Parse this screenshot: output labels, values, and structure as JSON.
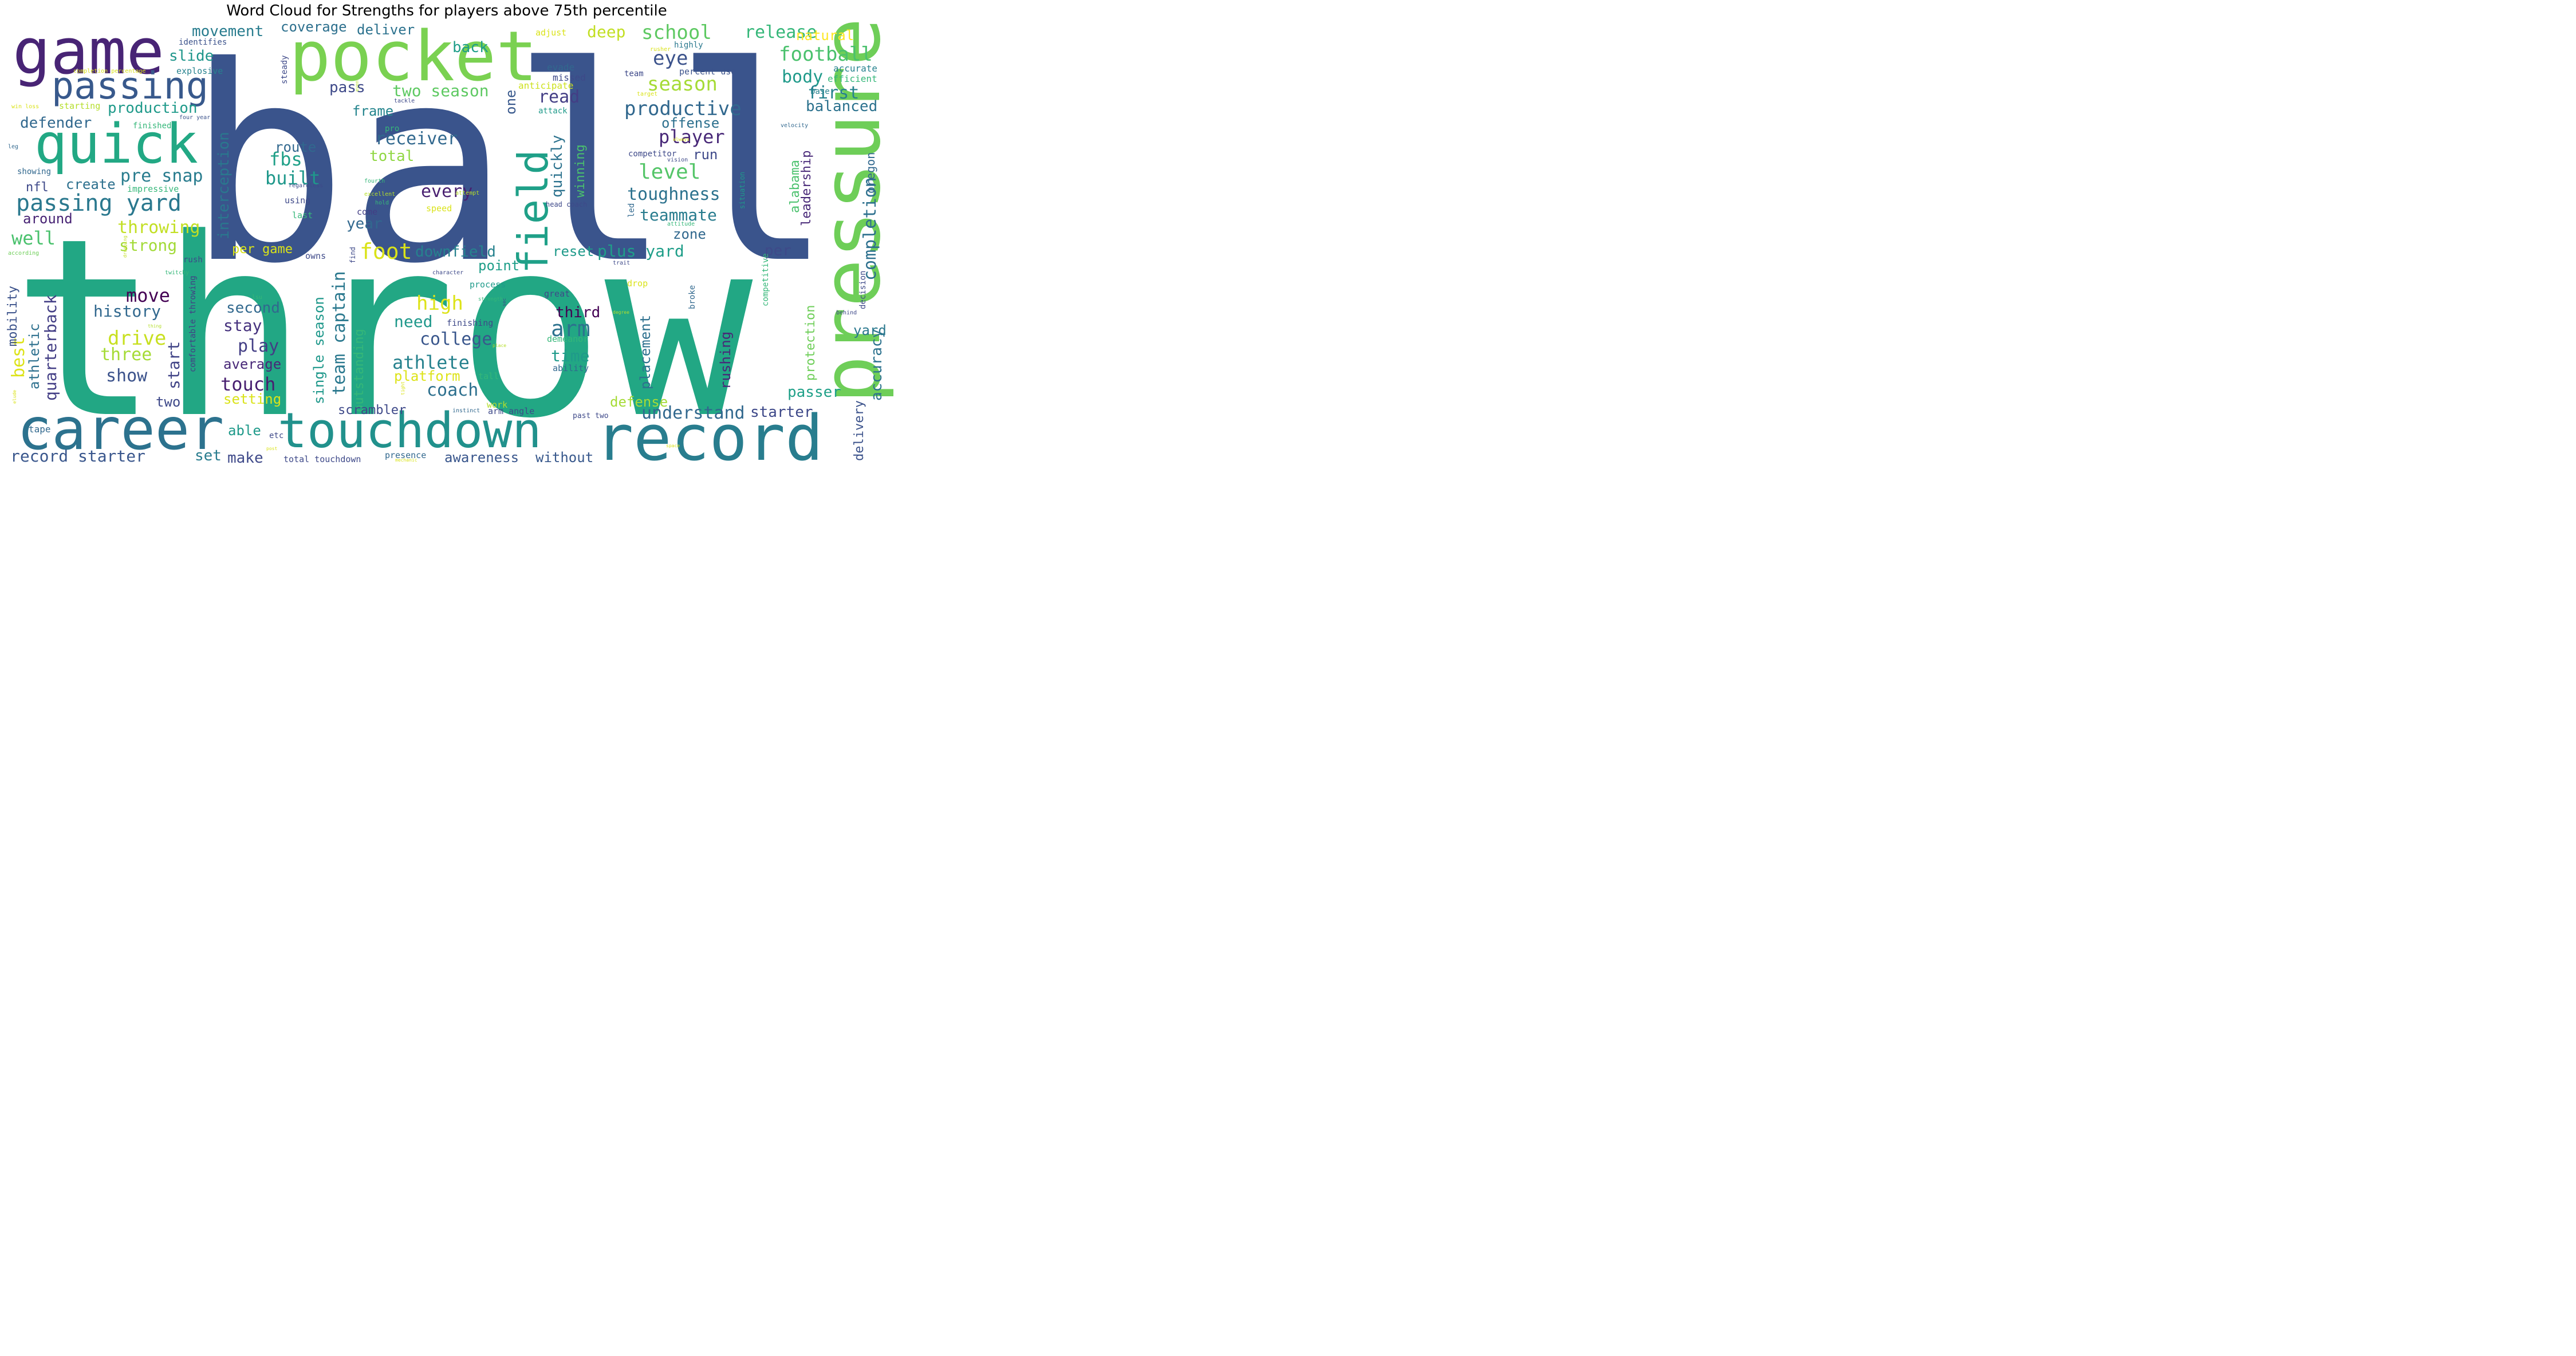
{
  "title": "Word Cloud for Strengths for players above 75th percentile",
  "words": [
    {
      "text": "throw",
      "color": "#22a784"
    },
    {
      "text": "ball",
      "color": "#3a548c"
    },
    {
      "text": "pocket",
      "color": "#7ad151"
    },
    {
      "text": "game",
      "color": "#482475"
    },
    {
      "text": "pressure",
      "color": "#6ece58"
    },
    {
      "text": "career",
      "color": "#2c728e"
    },
    {
      "text": "record",
      "color": "#287d8e"
    },
    {
      "text": "touchdown",
      "color": "#21918c"
    },
    {
      "text": "quick",
      "color": "#22a884"
    },
    {
      "text": "passing",
      "color": "#38598c"
    },
    {
      "text": "field",
      "color": "#1fa088"
    },
    {
      "text": "passing yard",
      "color": "#2a788e"
    },
    {
      "text": "foot",
      "color": "#dae319"
    },
    {
      "text": "arm",
      "color": "#2c728e"
    },
    {
      "text": "record starter",
      "color": "#39568c"
    },
    {
      "text": "understand",
      "color": "#31688e"
    },
    {
      "text": "coach",
      "color": "#2d708e"
    },
    {
      "text": "school",
      "color": "#5ec962"
    },
    {
      "text": "eye",
      "color": "#3b528b"
    },
    {
      "text": "season",
      "color": "#a5db36"
    },
    {
      "text": "football",
      "color": "#4ac16d"
    },
    {
      "text": "release",
      "color": "#35b779"
    },
    {
      "text": "productive",
      "color": "#31688e"
    },
    {
      "text": "player",
      "color": "#482878"
    },
    {
      "text": "level",
      "color": "#54c568"
    },
    {
      "text": "toughness",
      "color": "#2c728e"
    },
    {
      "text": "teammate",
      "color": "#287c8e"
    },
    {
      "text": "body",
      "color": "#1f9a8a"
    },
    {
      "text": "first",
      "color": "#26828e"
    },
    {
      "text": "balanced",
      "color": "#2c728e"
    },
    {
      "text": "completion",
      "color": "#2d708e"
    },
    {
      "text": "leadership",
      "color": "#482878"
    },
    {
      "text": "alabama",
      "color": "#4ac16d"
    },
    {
      "text": "receiver",
      "color": "#31688e"
    },
    {
      "text": "fbs",
      "color": "#1fa088"
    },
    {
      "text": "built",
      "color": "#1f988b"
    },
    {
      "text": "route",
      "color": "#31688e"
    },
    {
      "text": "every",
      "color": "#481f70"
    },
    {
      "text": "total",
      "color": "#90d743"
    },
    {
      "text": "two season",
      "color": "#5ec962"
    },
    {
      "text": "pass",
      "color": "#3e4989"
    },
    {
      "text": "read",
      "color": "#433e85"
    },
    {
      "text": "quickly",
      "color": "#2c728e"
    },
    {
      "text": "winning",
      "color": "#4ac16d"
    },
    {
      "text": "one",
      "color": "#38588c"
    },
    {
      "text": "frame",
      "color": "#25858e"
    },
    {
      "text": "movement",
      "color": "#287c8e"
    },
    {
      "text": "coverage",
      "color": "#2d708e"
    },
    {
      "text": "deliver",
      "color": "#2c728e"
    },
    {
      "text": "back",
      "color": "#1f9e89"
    },
    {
      "text": "deep",
      "color": "#c2df23"
    },
    {
      "text": "slide",
      "color": "#1f968b"
    },
    {
      "text": "production",
      "color": "#1f9a8a"
    },
    {
      "text": "defender",
      "color": "#31688e"
    },
    {
      "text": "pre snap",
      "color": "#287c8e"
    },
    {
      "text": "nfl",
      "color": "#3e4989"
    },
    {
      "text": "create",
      "color": "#2d708e"
    },
    {
      "text": "around",
      "color": "#482475"
    },
    {
      "text": "well",
      "color": "#4ac16d"
    },
    {
      "text": "throwing",
      "color": "#c2df23"
    },
    {
      "text": "strong",
      "color": "#a2da37"
    },
    {
      "text": "move",
      "color": "#440154"
    },
    {
      "text": "history",
      "color": "#31688e"
    },
    {
      "text": "drive",
      "color": "#c8e020"
    },
    {
      "text": "three",
      "color": "#a5db36"
    },
    {
      "text": "show",
      "color": "#3b528b"
    },
    {
      "text": "best",
      "color": "#dde318"
    },
    {
      "text": "athletic",
      "color": "#2d708e"
    },
    {
      "text": "quarterback",
      "color": "#433e85"
    },
    {
      "text": "mobility",
      "color": "#3b528b"
    },
    {
      "text": "start",
      "color": "#414487"
    },
    {
      "text": "interception",
      "color": "#2a788e"
    },
    {
      "text": "year",
      "color": "#31688e"
    },
    {
      "text": "per game",
      "color": "#dae319"
    },
    {
      "text": "downfield",
      "color": "#26828e"
    },
    {
      "text": "point",
      "color": "#1f9e89"
    },
    {
      "text": "high",
      "color": "#dde318"
    },
    {
      "text": "team captain",
      "color": "#2a788e"
    },
    {
      "text": "single season",
      "color": "#1f988b"
    },
    {
      "text": "outstanding",
      "color": "#35b779"
    },
    {
      "text": "second",
      "color": "#31688e"
    },
    {
      "text": "stay",
      "color": "#46327e"
    },
    {
      "text": "need",
      "color": "#1f988b"
    },
    {
      "text": "college",
      "color": "#39568c"
    },
    {
      "text": "athlete",
      "color": "#26828e"
    },
    {
      "text": "play",
      "color": "#433e85"
    },
    {
      "text": "average",
      "color": "#482878"
    },
    {
      "text": "touch",
      "color": "#481f70"
    },
    {
      "text": "platform",
      "color": "#dde318"
    },
    {
      "text": "setting",
      "color": "#dae319"
    },
    {
      "text": "two",
      "color": "#3e4989"
    },
    {
      "text": "scrambler",
      "color": "#3e4989"
    },
    {
      "text": "able",
      "color": "#1f9a8a"
    },
    {
      "text": "set",
      "color": "#287c8e"
    },
    {
      "text": "make",
      "color": "#3e4989"
    },
    {
      "text": "awareness",
      "color": "#39568c"
    },
    {
      "text": "without",
      "color": "#38588c"
    },
    {
      "text": "time",
      "color": "#1f9a8a"
    },
    {
      "text": "third",
      "color": "#440154"
    },
    {
      "text": "placement",
      "color": "#2d708e"
    },
    {
      "text": "rushing",
      "color": "#482878"
    },
    {
      "text": "defense",
      "color": "#a5db36"
    },
    {
      "text": "starter",
      "color": "#3e4989"
    },
    {
      "text": "passer",
      "color": "#1fa088"
    },
    {
      "text": "accuracy",
      "color": "#2c728e"
    },
    {
      "text": "delivery",
      "color": "#3b528b"
    },
    {
      "text": "protection",
      "color": "#6ece58"
    },
    {
      "text": "yard",
      "color": "#2a788e"
    },
    {
      "text": "per",
      "color": "#3e4989"
    },
    {
      "text": "plus yard",
      "color": "#1f9e89"
    },
    {
      "text": "reset",
      "color": "#1f9a8a"
    },
    {
      "text": "zone",
      "color": "#31688e"
    },
    {
      "text": "offense",
      "color": "#2d708e"
    },
    {
      "text": "run",
      "color": "#3e4989"
    },
    {
      "text": "natural",
      "color": "#fde725"
    },
    {
      "text": "oregon",
      "color": "#31688e"
    },
    {
      "text": "competitor",
      "color": "#3e4989"
    },
    {
      "text": "situation",
      "color": "#1f9a8a"
    },
    {
      "text": "led",
      "color": "#31688e"
    },
    {
      "text": "accurate",
      "color": "#26828e"
    },
    {
      "text": "efficient",
      "color": "#35b779"
    },
    {
      "text": "base",
      "color": "#26828e"
    },
    {
      "text": "percent use",
      "color": "#3b528b"
    },
    {
      "text": "team",
      "color": "#3e4989"
    },
    {
      "text": "missed",
      "color": "#3e4989"
    },
    {
      "text": "evade",
      "color": "#31688e"
    },
    {
      "text": "anticipate",
      "color": "#cde11d"
    },
    {
      "text": "attack",
      "color": "#1f9a8a"
    },
    {
      "text": "highly",
      "color": "#2a788e"
    },
    {
      "text": "adjust",
      "color": "#dae319"
    },
    {
      "text": "steady",
      "color": "#3e4989"
    },
    {
      "text": "identifies",
      "color": "#3b528b"
    },
    {
      "text": "explosive",
      "color": "#26828e"
    },
    {
      "text": "completion percentage",
      "color": "#dae319"
    },
    {
      "text": "starting",
      "color": "#b5de2b"
    },
    {
      "text": "win loss",
      "color": "#dae319"
    },
    {
      "text": "finished",
      "color": "#35b779"
    },
    {
      "text": "four year",
      "color": "#3b528b"
    },
    {
      "text": "showing",
      "color": "#31688e"
    },
    {
      "text": "impressive",
      "color": "#35b779"
    },
    {
      "text": "leg",
      "color": "#31688e"
    },
    {
      "text": "according",
      "color": "#6ece58"
    },
    {
      "text": "twitchy",
      "color": "#35b779"
    },
    {
      "text": "rush",
      "color": "#3e4989"
    },
    {
      "text": "comfortable throwing",
      "color": "#433e85"
    },
    {
      "text": "elude",
      "color": "#dae319"
    },
    {
      "text": "thing",
      "color": "#b5de2b"
    },
    {
      "text": "dropping",
      "color": "#c2df23"
    },
    {
      "text": "tape",
      "color": "#31688e"
    },
    {
      "text": "post",
      "color": "#dae319"
    },
    {
      "text": "etc",
      "color": "#3e4989"
    },
    {
      "text": "total touchdown",
      "color": "#3e4989"
    },
    {
      "text": "owns",
      "color": "#3e4989"
    },
    {
      "text": "find",
      "color": "#3e4989"
    },
    {
      "text": "using",
      "color": "#3e4989"
    },
    {
      "text": "last",
      "color": "#35b779"
    },
    {
      "text": "come",
      "color": "#433e85"
    },
    {
      "text": "speed",
      "color": "#dae319"
    },
    {
      "text": "hold",
      "color": "#35b779"
    },
    {
      "text": "regardless",
      "color": "#3e4989"
    },
    {
      "text": "excellent",
      "color": "#b5de2b"
    },
    {
      "text": "fourth",
      "color": "#35b779"
    },
    {
      "text": "attempt",
      "color": "#b5de2b"
    },
    {
      "text": "pro",
      "color": "#35b779"
    },
    {
      "text": "tackle",
      "color": "#3e4989"
    },
    {
      "text": "head coach",
      "color": "#3e4989"
    },
    {
      "text": "attitude",
      "color": "#35b779"
    },
    {
      "text": "vision",
      "color": "#3e4989"
    },
    {
      "text": "always",
      "color": "#dae319"
    },
    {
      "text": "velocity",
      "color": "#31688e"
    },
    {
      "text": "trait",
      "color": "#3e4989"
    },
    {
      "text": "process",
      "color": "#1f9a8a"
    },
    {
      "text": "drop",
      "color": "#dae319"
    },
    {
      "text": "great",
      "color": "#3e4989"
    },
    {
      "text": "character",
      "color": "#3e4989"
    },
    {
      "text": "strength",
      "color": "#35b779"
    },
    {
      "text": "demeanor",
      "color": "#35b779"
    },
    {
      "text": "ability",
      "color": "#31688e"
    },
    {
      "text": "finishing",
      "color": "#3e4989"
    },
    {
      "text": "competitive",
      "color": "#35b779"
    },
    {
      "text": "broke",
      "color": "#31688e"
    },
    {
      "text": "decision",
      "color": "#3e4989"
    },
    {
      "text": "behind",
      "color": "#3e4989"
    },
    {
      "text": "tall",
      "color": "#35b779"
    },
    {
      "text": "work",
      "color": "#b5de2b"
    },
    {
      "text": "arm angle",
      "color": "#3e4989"
    },
    {
      "text": "instinct",
      "color": "#31688e"
    },
    {
      "text": "past two",
      "color": "#3e4989"
    },
    {
      "text": "presence",
      "color": "#31688e"
    },
    {
      "text": "mechanic",
      "color": "#dae319"
    },
    {
      "text": "degree",
      "color": "#b5de2b"
    },
    {
      "text": "space",
      "color": "#dae319"
    },
    {
      "text": "place",
      "color": "#b5de2b"
    },
    {
      "text": "target",
      "color": "#dae319"
    },
    {
      "text": "lsu",
      "color": "#35b779"
    },
    {
      "text": "rusher",
      "color": "#dae319"
    },
    {
      "text": "sec",
      "color": "#3e4989"
    },
    {
      "text": "even",
      "color": "#b5de2b"
    },
    {
      "text": "tight",
      "color": "#dae319"
    }
  ]
}
